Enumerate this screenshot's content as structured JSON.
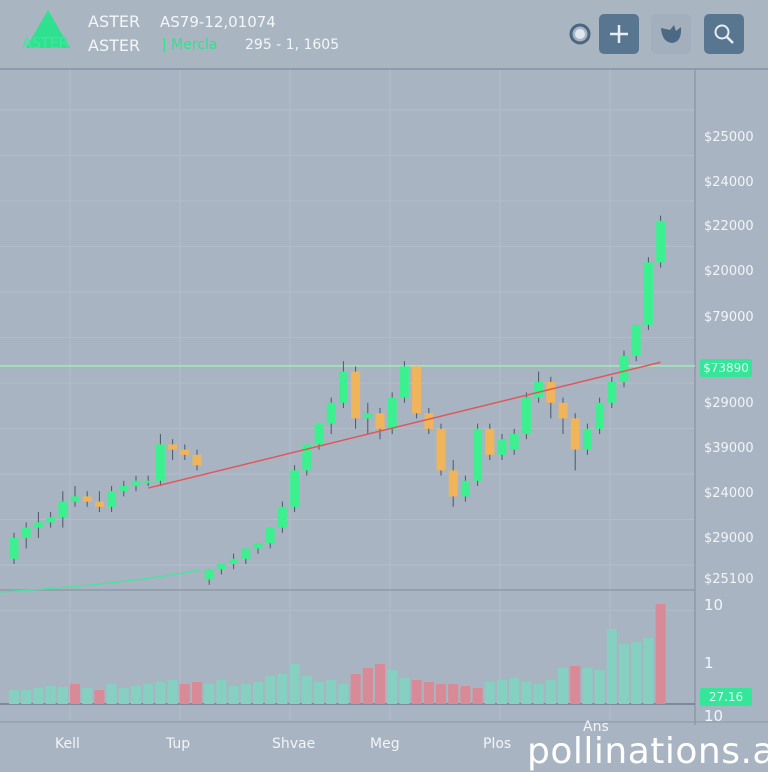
{
  "header": {
    "logo_text": "ASTER",
    "symbol": "ASTER",
    "symbol_sub": "ASTER",
    "price_line": "AS79-12,01074",
    "mode_label": "| Mercla",
    "range_line": "295 - 1, 1605",
    "icons": [
      "refresh-icon",
      "plus-icon",
      "bird-icon",
      "search-icon"
    ]
  },
  "price_axis": [
    "$25000",
    "$24000",
    "$22000",
    "$20000",
    "$79000",
    "$29000",
    "$39000",
    "$24000",
    "$29000",
    "$25100"
  ],
  "price_badge": "$73890",
  "volume_axis": [
    "10",
    "1",
    "10"
  ],
  "volume_badge": "27.16",
  "x_axis": [
    "Kell",
    "Tup",
    "Shvae",
    "Meg",
    "Plos",
    "Ans"
  ],
  "watermark": "pollinations.ai",
  "colors": {
    "up": "#3df08f",
    "down": "#f0b45a",
    "trend": "#e0565a",
    "level": "#9cf0b0",
    "vol_up": "#86d0c2",
    "vol_down": "#d88a96"
  },
  "chart_data": {
    "type": "candlestick",
    "ylim": [
      0,
      100
    ],
    "candles": [
      [
        6,
        11,
        5,
        10
      ],
      [
        10,
        13,
        8,
        12
      ],
      [
        12,
        15,
        10,
        13
      ],
      [
        13,
        15,
        12,
        14
      ],
      [
        14,
        19,
        12,
        17
      ],
      [
        17,
        20,
        16,
        18
      ],
      [
        18,
        19,
        16,
        17
      ],
      [
        17,
        19,
        15,
        16
      ],
      [
        16,
        20,
        15,
        19
      ],
      [
        19,
        21,
        18,
        20
      ],
      [
        20,
        22,
        19,
        21
      ],
      [
        21,
        22,
        20,
        21
      ],
      [
        21,
        30,
        20,
        28
      ],
      [
        28,
        29,
        25,
        27
      ],
      [
        27,
        28,
        25,
        26
      ],
      [
        26,
        27,
        23,
        24
      ],
      [
        2,
        4,
        1,
        4
      ],
      [
        4,
        5,
        3,
        5
      ],
      [
        5,
        7,
        4,
        6
      ],
      [
        6,
        8,
        5,
        8
      ],
      [
        8,
        9,
        7,
        9
      ],
      [
        9,
        12,
        8,
        12
      ],
      [
        12,
        17,
        11,
        16
      ],
      [
        16,
        24,
        15,
        23
      ],
      [
        23,
        28,
        22,
        28
      ],
      [
        28,
        32,
        27,
        32
      ],
      [
        32,
        37,
        30,
        36
      ],
      [
        36,
        44,
        35,
        42
      ],
      [
        42,
        43,
        31,
        33
      ],
      [
        33,
        36,
        30,
        34
      ],
      [
        34,
        35,
        29,
        31
      ],
      [
        31,
        38,
        30,
        37
      ],
      [
        37,
        44,
        36,
        43
      ],
      [
        43,
        43,
        33,
        34
      ],
      [
        34,
        35,
        30,
        31
      ],
      [
        31,
        32,
        22,
        23
      ],
      [
        23,
        25,
        16,
        18
      ],
      [
        18,
        22,
        17,
        21
      ],
      [
        21,
        32,
        20,
        31
      ],
      [
        31,
        32,
        25,
        26
      ],
      [
        26,
        30,
        25,
        29
      ],
      [
        27,
        31,
        26,
        30
      ],
      [
        30,
        38,
        29,
        37
      ],
      [
        37,
        42,
        36,
        40
      ],
      [
        40,
        41,
        33,
        36
      ],
      [
        36,
        37,
        30,
        33
      ],
      [
        33,
        34,
        23,
        27
      ],
      [
        27,
        32,
        26,
        31
      ],
      [
        31,
        37,
        30,
        36
      ],
      [
        36,
        41,
        35,
        40
      ],
      [
        40,
        46,
        39,
        45
      ],
      [
        45,
        51,
        44,
        51
      ],
      [
        51,
        64,
        50,
        63
      ],
      [
        63,
        72,
        62,
        71
      ]
    ],
    "trendline": [
      [
        11,
        19.6
      ],
      [
        53,
        43.8
      ]
    ],
    "level": 43.1,
    "volumes": [
      14,
      14,
      16,
      18,
      17,
      20,
      16,
      14,
      20,
      16,
      18,
      20,
      22,
      24,
      20,
      22,
      20,
      24,
      18,
      20,
      22,
      28,
      30,
      40,
      28,
      22,
      24,
      20,
      30,
      36,
      40,
      34,
      26,
      24,
      22,
      20,
      20,
      18,
      16,
      22,
      24,
      26,
      22,
      20,
      24,
      36,
      38,
      36,
      34,
      75,
      60,
      62,
      66,
      100
    ],
    "volume_down": [
      5,
      7,
      14,
      15,
      28,
      29,
      30,
      33,
      34,
      35,
      36,
      37,
      38,
      46,
      53
    ]
  }
}
